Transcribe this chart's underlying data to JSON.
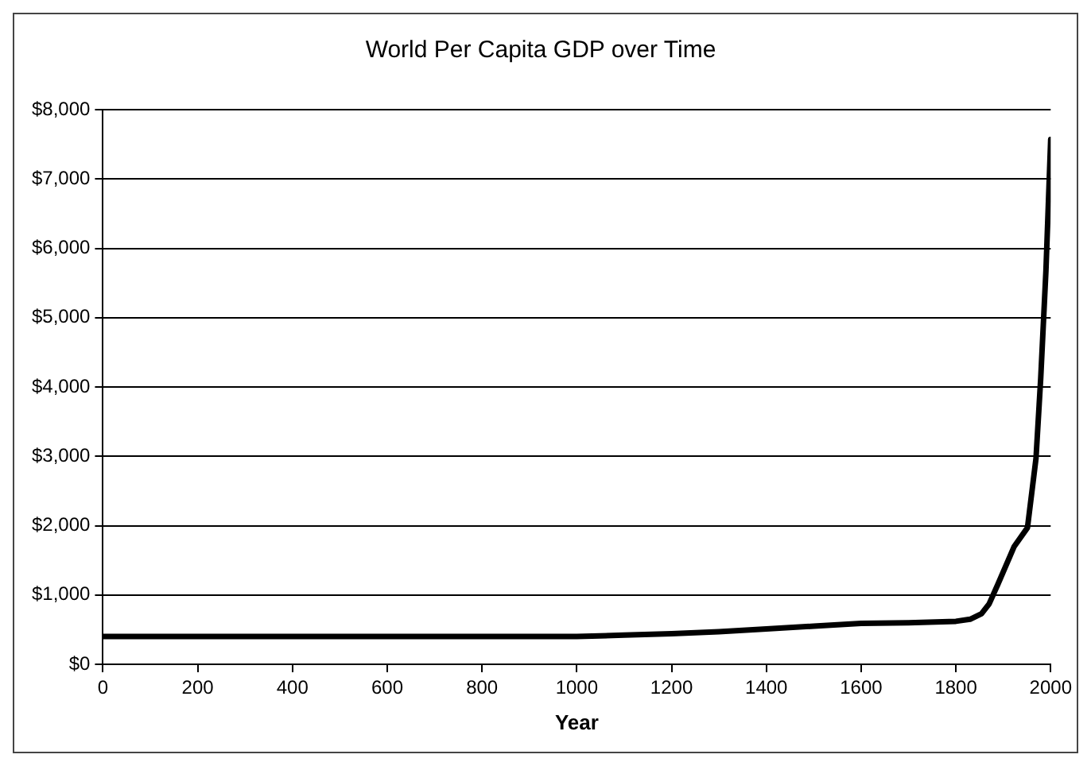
{
  "chart_data": {
    "type": "line",
    "title": "World Per Capita GDP over Time",
    "xlabel": "Year",
    "series": [
      {
        "color": "#000000",
        "x": [
          0,
          200,
          400,
          600,
          800,
          1000,
          1100,
          1200,
          1300,
          1400,
          1500,
          1600,
          1700,
          1800,
          1830,
          1854,
          1870,
          1889,
          1923,
          1951,
          1969,
          1979,
          1990,
          2000
        ],
        "values": [
          400,
          400,
          400,
          400,
          400,
          400,
          420,
          440,
          470,
          510,
          550,
          590,
          600,
          620,
          650,
          730,
          870,
          1160,
          1700,
          1970,
          2970,
          4130,
          5680,
          7570
        ]
      }
    ],
    "xlim": [
      0,
      2000
    ],
    "xticks": [
      0,
      200,
      400,
      600,
      800,
      1000,
      1200,
      1400,
      1600,
      1800,
      2000
    ],
    "ylim": [
      0,
      8000
    ],
    "yticks": [
      {
        "value": 0,
        "label": "$0"
      },
      {
        "value": 1000,
        "label": "$1,000"
      },
      {
        "value": 2000,
        "label": "$2,000"
      },
      {
        "value": 3000,
        "label": "$3,000"
      },
      {
        "value": 4000,
        "label": "$4,000"
      },
      {
        "value": 5000,
        "label": "$5,000"
      },
      {
        "value": 6000,
        "label": "$6,000"
      },
      {
        "value": 7000,
        "label": "$7,000"
      },
      {
        "value": 8000,
        "label": "$8,000"
      }
    ],
    "grid": "y",
    "legend": false,
    "marker": "none",
    "line_style": "solid"
  }
}
